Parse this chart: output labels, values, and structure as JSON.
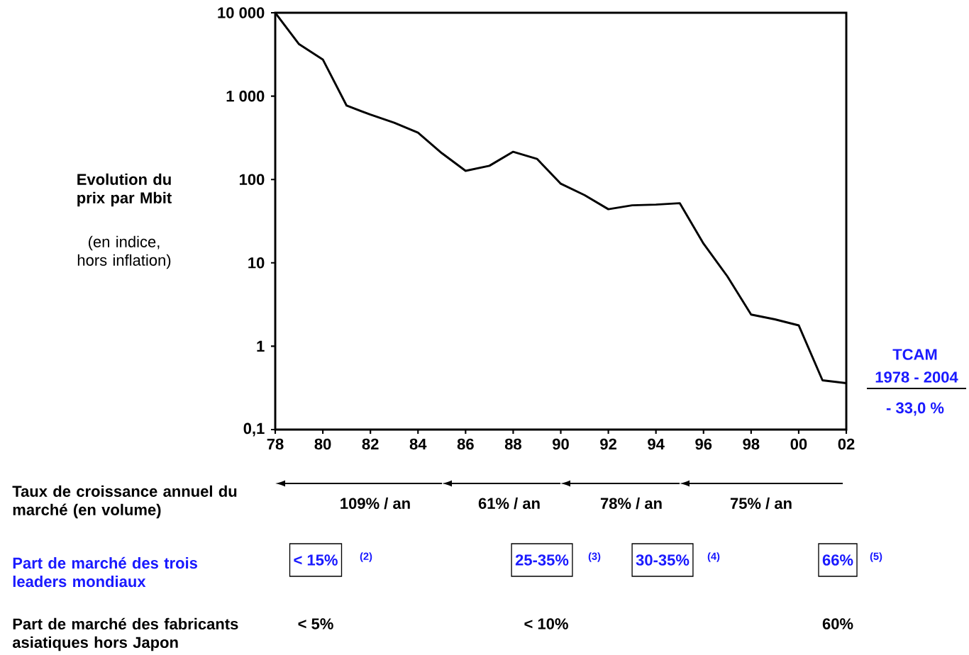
{
  "chart_data": {
    "type": "line",
    "ylabel": "Evolution du prix par Mbit",
    "x": [
      "1978",
      "1979",
      "1980",
      "1981",
      "1982",
      "1983",
      "1984",
      "1985",
      "1986",
      "1987",
      "1988",
      "1989",
      "1990",
      "1991",
      "1992",
      "1993",
      "1994",
      "1995",
      "1996",
      "1997",
      "1998",
      "1999",
      "2000",
      "2001",
      "2002"
    ],
    "series": [
      {
        "color": "#000000",
        "values": [
          10000,
          4200,
          2750,
          770,
          600,
          480,
          365,
          207,
          127,
          146,
          215,
          177,
          89,
          65,
          44,
          49,
          50,
          52,
          17,
          6.9,
          2.4,
          2.1,
          1.78,
          0.39,
          0.36
        ]
      }
    ],
    "log": "y",
    "grid": false,
    "marker": "none",
    "line_style": "solid",
    "xlim": [
      "1978",
      "2002"
    ],
    "xticks": [
      {
        "value": "1978",
        "label": "78"
      },
      {
        "value": "1980",
        "label": "80"
      },
      {
        "value": "1982",
        "label": "82"
      },
      {
        "value": "1984",
        "label": "84"
      },
      {
        "value": "1986",
        "label": "86"
      },
      {
        "value": "1988",
        "label": "88"
      },
      {
        "value": "1990",
        "label": "90"
      },
      {
        "value": "1992",
        "label": "92"
      },
      {
        "value": "1994",
        "label": "94"
      },
      {
        "value": "1996",
        "label": "96"
      },
      {
        "value": "1998",
        "label": "98"
      },
      {
        "value": "2000",
        "label": "00"
      },
      {
        "value": "2002",
        "label": "02"
      }
    ],
    "ylim": [
      0.1,
      10000
    ],
    "yticks": [
      {
        "value": 0.1,
        "label": "0,1"
      },
      1,
      10,
      100,
      {
        "value": 1000,
        "label": "1 000"
      },
      {
        "value": 10000,
        "label": "10 000"
      }
    ],
    "annotations": [
      "(en indice, hors inflation)",
      "TCAM",
      "1978 - 2004",
      "- 33,0 %",
      "Taux de croissance annuel du marché (en volume)",
      "109% / an",
      "61% / an",
      "78% / an",
      "75% / an",
      "Part de marché des trois leaders mondiaux",
      "< 15%",
      "(2)",
      "25-35%",
      "(3)",
      "30-35%",
      "(4)",
      "66%",
      "(5)",
      "Part de marché des fabricants asiatiques hors Japon",
      "< 5%",
      "< 10%",
      "60%"
    ]
  }
}
